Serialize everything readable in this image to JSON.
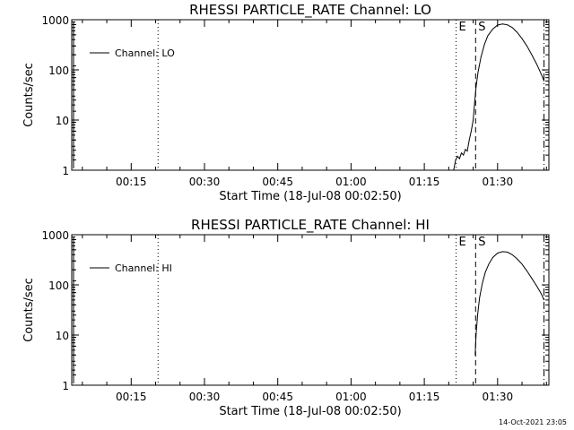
{
  "chart_data": [
    {
      "type": "line",
      "title": "RHESSI PARTICLE_RATE Channel: LO",
      "xlabel": "Start Time (18-Jul-08 00:02:50)",
      "ylabel": "Counts/sec",
      "yscale": "log",
      "ylim": [
        1,
        1000
      ],
      "xlim_minutes": [
        2.83,
        100.5
      ],
      "x_tick_labels": [
        "00:15",
        "00:30",
        "00:45",
        "01:00",
        "01:15",
        "01:30"
      ],
      "x_tick_minutes": [
        15,
        30,
        45,
        60,
        75,
        90
      ],
      "y_tick_labels": [
        "1",
        "10",
        "100",
        "1000"
      ],
      "y_tick_values": [
        1,
        10,
        100,
        1000
      ],
      "legend": "Channel: LO",
      "legend_position": "top-left",
      "markers": [
        {
          "label": "",
          "minute": 20.5,
          "style": "dotted"
        },
        {
          "label": "E",
          "minute": 81.5,
          "style": "dotted"
        },
        {
          "label": "S",
          "minute": 85.5,
          "style": "dashed"
        },
        {
          "label": "",
          "minute": 99.5,
          "style": "dashdot"
        }
      ],
      "series": [
        {
          "name": "LO",
          "points": [
            [
              81.0,
              1.0
            ],
            [
              81.4,
              1.6
            ],
            [
              81.8,
              1.9
            ],
            [
              82.2,
              1.7
            ],
            [
              82.6,
              2.2
            ],
            [
              83.0,
              2.0
            ],
            [
              83.4,
              2.6
            ],
            [
              83.8,
              2.4
            ],
            [
              84.2,
              4.0
            ],
            [
              84.6,
              6.0
            ],
            [
              85.0,
              10
            ],
            [
              85.3,
              22
            ],
            [
              85.6,
              45
            ],
            [
              86.0,
              90
            ],
            [
              86.6,
              180
            ],
            [
              87.3,
              320
            ],
            [
              88.0,
              480
            ],
            [
              89.0,
              650
            ],
            [
              90.0,
              780
            ],
            [
              91.0,
              820
            ],
            [
              92.0,
              790
            ],
            [
              93.0,
              700
            ],
            [
              94.0,
              560
            ],
            [
              95.0,
              420
            ],
            [
              96.0,
              300
            ],
            [
              97.0,
              200
            ],
            [
              98.0,
              130
            ],
            [
              99.0,
              80
            ],
            [
              99.5,
              60
            ]
          ]
        }
      ]
    },
    {
      "type": "line",
      "title": "RHESSI PARTICLE_RATE Channel: HI",
      "xlabel": "Start Time (18-Jul-08 00:02:50)",
      "ylabel": "Counts/sec",
      "yscale": "log",
      "ylim": [
        1,
        1000
      ],
      "xlim_minutes": [
        2.83,
        100.5
      ],
      "x_tick_labels": [
        "00:15",
        "00:30",
        "00:45",
        "01:00",
        "01:15",
        "01:30"
      ],
      "x_tick_minutes": [
        15,
        30,
        45,
        60,
        75,
        90
      ],
      "y_tick_labels": [
        "1",
        "10",
        "100",
        "1000"
      ],
      "y_tick_values": [
        1,
        10,
        100,
        1000
      ],
      "legend": "Channel: HI",
      "legend_position": "top-left",
      "markers": [
        {
          "label": "",
          "minute": 20.5,
          "style": "dotted"
        },
        {
          "label": "E",
          "minute": 81.5,
          "style": "dotted"
        },
        {
          "label": "S",
          "minute": 85.5,
          "style": "dashed"
        },
        {
          "label": "",
          "minute": 99.5,
          "style": "dashdot"
        }
      ],
      "series": [
        {
          "name": "HI",
          "points": [
            [
              85.4,
              4
            ],
            [
              85.6,
              10
            ],
            [
              85.9,
              25
            ],
            [
              86.3,
              55
            ],
            [
              86.9,
              110
            ],
            [
              87.5,
              180
            ],
            [
              88.2,
              260
            ],
            [
              89.0,
              350
            ],
            [
              90.0,
              430
            ],
            [
              91.0,
              460
            ],
            [
              92.0,
              450
            ],
            [
              93.0,
              400
            ],
            [
              94.0,
              330
            ],
            [
              95.0,
              260
            ],
            [
              96.0,
              190
            ],
            [
              97.0,
              135
            ],
            [
              98.0,
              95
            ],
            [
              99.0,
              65
            ],
            [
              99.5,
              50
            ]
          ]
        }
      ]
    }
  ],
  "footer_timestamp": "14-Oct-2021 23:05"
}
